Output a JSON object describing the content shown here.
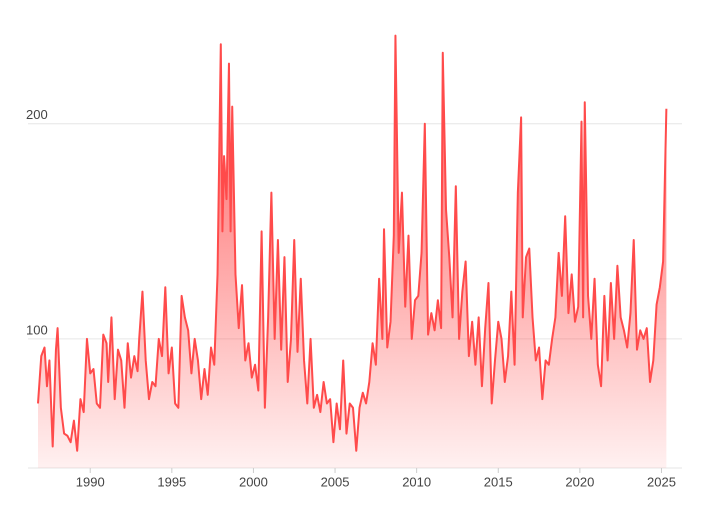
{
  "chart_data": {
    "type": "area",
    "x": [
      1986.8,
      1987.0,
      1987.2,
      1987.35,
      1987.5,
      1987.7,
      1987.9,
      1988.0,
      1988.2,
      1988.4,
      1988.6,
      1988.8,
      1989.0,
      1989.2,
      1989.4,
      1989.6,
      1989.8,
      1990.0,
      1990.2,
      1990.4,
      1990.6,
      1990.8,
      1991.0,
      1991.1,
      1991.3,
      1991.5,
      1991.7,
      1991.9,
      1992.1,
      1992.3,
      1992.5,
      1992.7,
      1992.9,
      1993.0,
      1993.2,
      1993.4,
      1993.6,
      1993.8,
      1994.0,
      1994.2,
      1994.4,
      1994.6,
      1994.8,
      1995.0,
      1995.2,
      1995.4,
      1995.6,
      1995.8,
      1996.0,
      1996.2,
      1996.4,
      1996.6,
      1996.8,
      1997.0,
      1997.2,
      1997.4,
      1997.6,
      1997.8,
      1998.0,
      1998.1,
      1998.2,
      1998.35,
      1998.5,
      1998.6,
      1998.7,
      1998.9,
      1999.1,
      1999.3,
      1999.5,
      1999.7,
      1999.9,
      2000.1,
      2000.3,
      2000.5,
      2000.7,
      2000.9,
      2001.1,
      2001.3,
      2001.5,
      2001.7,
      2001.9,
      2002.1,
      2002.3,
      2002.5,
      2002.7,
      2002.9,
      2003.1,
      2003.3,
      2003.5,
      2003.7,
      2003.9,
      2004.1,
      2004.3,
      2004.5,
      2004.7,
      2004.9,
      2005.1,
      2005.3,
      2005.5,
      2005.7,
      2005.9,
      2006.1,
      2006.3,
      2006.5,
      2006.7,
      2006.9,
      2007.1,
      2007.3,
      2007.5,
      2007.7,
      2007.9,
      2008.0,
      2008.2,
      2008.4,
      2008.6,
      2008.7,
      2008.9,
      2009.1,
      2009.3,
      2009.5,
      2009.7,
      2009.9,
      2010.1,
      2010.3,
      2010.5,
      2010.7,
      2010.9,
      2011.1,
      2011.3,
      2011.5,
      2011.6,
      2011.8,
      2012.0,
      2012.2,
      2012.4,
      2012.6,
      2012.8,
      2013.0,
      2013.2,
      2013.4,
      2013.6,
      2013.8,
      2014.0,
      2014.2,
      2014.4,
      2014.6,
      2014.8,
      2015.0,
      2015.2,
      2015.4,
      2015.6,
      2015.8,
      2016.0,
      2016.2,
      2016.4,
      2016.5,
      2016.7,
      2016.9,
      2017.1,
      2017.3,
      2017.5,
      2017.7,
      2017.9,
      2018.1,
      2018.3,
      2018.5,
      2018.7,
      2018.9,
      2019.1,
      2019.3,
      2019.5,
      2019.7,
      2019.9,
      2020.1,
      2020.2,
      2020.3,
      2020.5,
      2020.7,
      2020.9,
      2021.1,
      2021.3,
      2021.5,
      2021.7,
      2021.9,
      2022.1,
      2022.3,
      2022.5,
      2022.7,
      2022.9,
      2023.1,
      2023.3,
      2023.5,
      2023.7,
      2023.9,
      2024.1,
      2024.3,
      2024.5,
      2024.7,
      2024.9,
      2025.1,
      2025.3
    ],
    "values": [
      70,
      92,
      96,
      78,
      90,
      50,
      95,
      105,
      68,
      56,
      55,
      52,
      62,
      48,
      72,
      66,
      100,
      84,
      86,
      70,
      68,
      102,
      98,
      80,
      110,
      72,
      95,
      90,
      68,
      98,
      82,
      92,
      85,
      100,
      122,
      90,
      72,
      80,
      78,
      100,
      92,
      124,
      84,
      96,
      70,
      68,
      120,
      110,
      104,
      84,
      100,
      90,
      72,
      86,
      74,
      96,
      88,
      130,
      237,
      150,
      185,
      165,
      228,
      150,
      208,
      130,
      105,
      125,
      90,
      98,
      82,
      88,
      76,
      150,
      68,
      110,
      168,
      100,
      146,
      95,
      138,
      80,
      100,
      146,
      94,
      128,
      90,
      70,
      100,
      68,
      74,
      66,
      80,
      70,
      72,
      52,
      70,
      58,
      90,
      56,
      70,
      68,
      48,
      68,
      75,
      70,
      80,
      98,
      88,
      128,
      100,
      151,
      96,
      108,
      148,
      241,
      140,
      168,
      115,
      148,
      100,
      118,
      120,
      140,
      200,
      102,
      112,
      104,
      118,
      105,
      233,
      160,
      138,
      110,
      171,
      100,
      122,
      136,
      92,
      108,
      88,
      110,
      78,
      105,
      126,
      70,
      90,
      108,
      100,
      80,
      92,
      122,
      88,
      168,
      203,
      110,
      138,
      142,
      110,
      90,
      96,
      72,
      90,
      88,
      100,
      110,
      140,
      120,
      157,
      112,
      130,
      108,
      115,
      201,
      110,
      210,
      120,
      100,
      128,
      88,
      78,
      120,
      90,
      126,
      100,
      134,
      110,
      104,
      96,
      112,
      146,
      95,
      104,
      100,
      105,
      80,
      90,
      116,
      124,
      136,
      207
    ],
    "color": "#ff4b4b",
    "xlim": [
      1986.8,
      2025.4
    ],
    "xticks": [
      1990,
      1995,
      2000,
      2005,
      2010,
      2015,
      2020,
      2025
    ],
    "ylim": [
      40,
      245
    ],
    "yticks": [
      100,
      200
    ],
    "grid": true
  }
}
